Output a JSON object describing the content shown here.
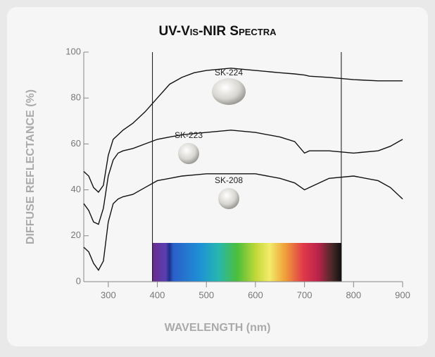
{
  "chart_data": {
    "type": "line",
    "title": "UV-Vis-NIR Spectra",
    "x_label": "WAVELENGTH (nm)",
    "y_label": "DIFFUSE REFLECTANCE (%)",
    "x": [
      250,
      260,
      270,
      280,
      290,
      300,
      310,
      320,
      330,
      350,
      375,
      400,
      425,
      450,
      475,
      500,
      550,
      600,
      650,
      680,
      700,
      710,
      750,
      800,
      850,
      875,
      900
    ],
    "series": [
      {
        "name": "SK-224",
        "color": "#111111",
        "values": [
          48,
          46,
          41,
          39,
          42,
          55,
          62,
          64,
          66,
          69,
          74,
          80,
          86,
          89,
          91,
          92,
          93,
          92,
          91,
          90.5,
          90,
          89.5,
          89,
          88,
          87.5,
          87.5,
          87.5
        ]
      },
      {
        "name": "SK-223",
        "color": "#111111",
        "values": [
          34,
          31,
          26,
          25,
          32,
          46,
          53,
          56,
          57,
          58,
          60,
          62,
          63,
          64,
          64.5,
          65,
          66,
          65,
          63,
          61,
          56,
          57,
          57,
          56,
          57,
          59,
          62
        ]
      },
      {
        "name": "SK-208",
        "color": "#111111",
        "values": [
          15,
          13,
          8,
          5,
          9,
          26,
          34,
          36,
          37,
          38,
          41,
          44,
          45,
          46,
          46.5,
          47,
          47,
          47,
          45,
          43,
          40,
          41,
          45,
          46,
          44,
          41,
          36
        ]
      }
    ],
    "visible_range": [
      390,
      775
    ],
    "xlim": [
      250,
      900
    ],
    "xticks": [
      300,
      400,
      500,
      600,
      700,
      800,
      900
    ],
    "ylim": [
      0,
      100
    ],
    "yticks": [
      0,
      20,
      40,
      60,
      80,
      100
    ],
    "grid": false
  }
}
